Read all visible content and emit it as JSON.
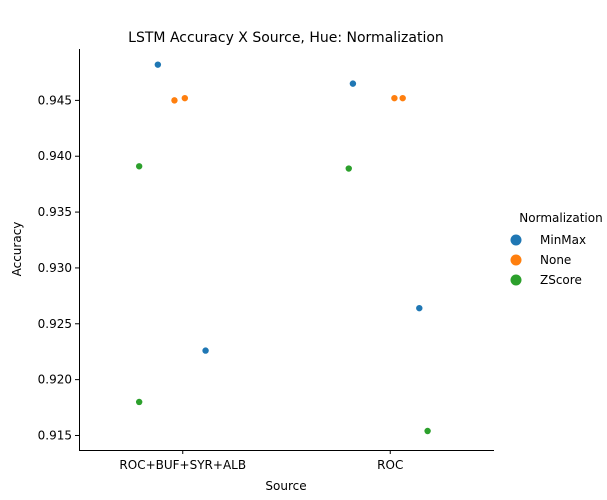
{
  "chart_data": {
    "type": "scatter",
    "subtype": "strip",
    "title": "LSTM Accuracy X Source, Hue: Normalization",
    "xlabel": "Source",
    "ylabel": "Accuracy",
    "categories": [
      "ROC+BUF+SYR+ALB",
      "ROC"
    ],
    "ylim": [
      0.9137,
      0.9496
    ],
    "yticks": [
      0.915,
      0.92,
      0.925,
      0.93,
      0.935,
      0.94,
      0.945
    ],
    "ytick_labels": [
      "0.915",
      "0.920",
      "0.925",
      "0.930",
      "0.935",
      "0.940",
      "0.945"
    ],
    "grid": false,
    "legend": {
      "title": "Normalization",
      "position": "right"
    },
    "series": [
      {
        "name": "MinMax",
        "color": "#1f77b4",
        "points": [
          {
            "category": "ROC+BUF+SYR+ALB",
            "value": 0.9482,
            "jitter": -0.12
          },
          {
            "category": "ROC+BUF+SYR+ALB",
            "value": 0.9226,
            "jitter": 0.11
          },
          {
            "category": "ROC",
            "value": 0.9465,
            "jitter": -0.18
          },
          {
            "category": "ROC",
            "value": 0.9264,
            "jitter": 0.14
          }
        ]
      },
      {
        "name": "None",
        "color": "#ff7f0e",
        "points": [
          {
            "category": "ROC+BUF+SYR+ALB",
            "value": 0.945,
            "jitter": -0.04
          },
          {
            "category": "ROC+BUF+SYR+ALB",
            "value": 0.9452,
            "jitter": 0.01
          },
          {
            "category": "ROC",
            "value": 0.9452,
            "jitter": 0.02
          },
          {
            "category": "ROC",
            "value": 0.9452,
            "jitter": 0.06
          }
        ]
      },
      {
        "name": "ZScore",
        "color": "#2ca02c",
        "points": [
          {
            "category": "ROC+BUF+SYR+ALB",
            "value": 0.9391,
            "jitter": -0.21
          },
          {
            "category": "ROC+BUF+SYR+ALB",
            "value": 0.918,
            "jitter": -0.21
          },
          {
            "category": "ROC",
            "value": 0.9389,
            "jitter": -0.2
          },
          {
            "category": "ROC",
            "value": 0.9154,
            "jitter": 0.18
          }
        ]
      }
    ]
  }
}
